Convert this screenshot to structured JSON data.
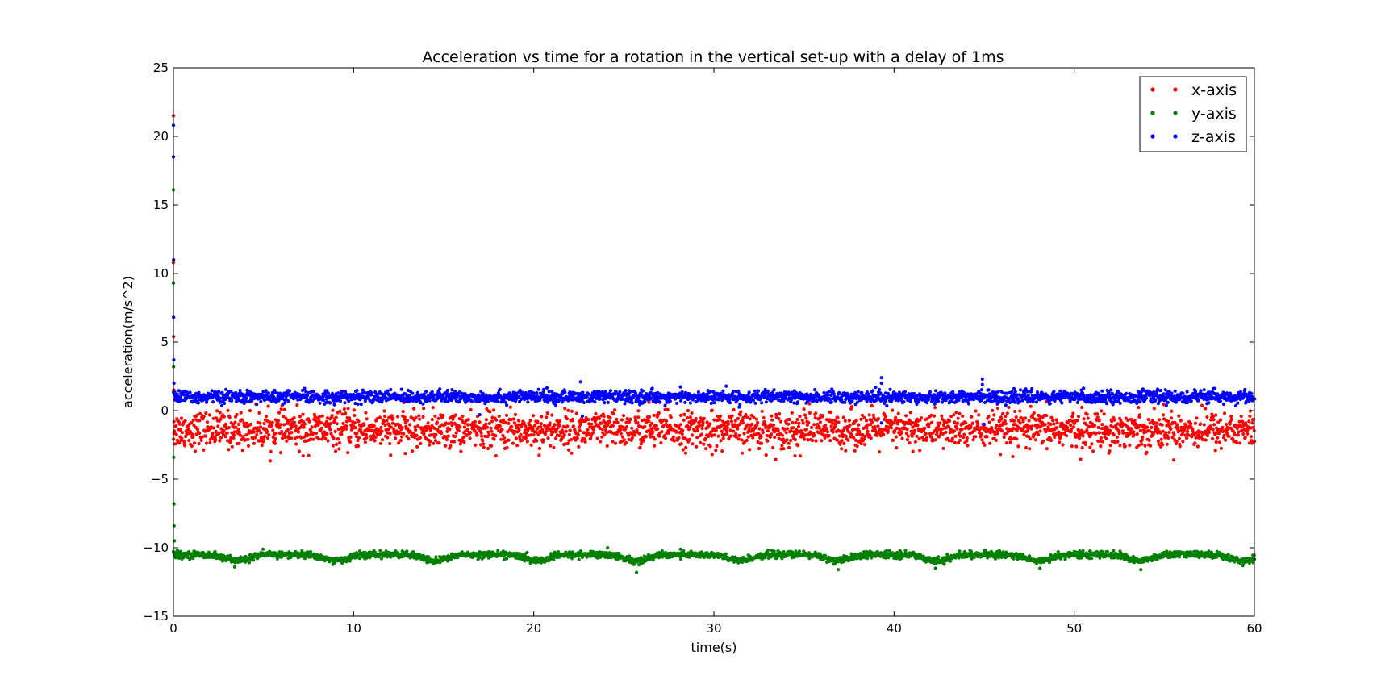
{
  "chart_data": {
    "type": "scatter",
    "title": "Acceleration vs time for a rotation in the vertical set-up with a delay of 1ms",
    "xlabel": "time(s)",
    "ylabel": "acceleration(m/s^2)",
    "xlim": [
      0,
      60
    ],
    "ylim": [
      -15,
      25
    ],
    "x_ticks": [
      "0",
      "10",
      "20",
      "30",
      "40",
      "50",
      "60"
    ],
    "y_ticks": [
      "25",
      "20",
      "15",
      "10",
      "5",
      "0",
      "−5",
      "−10",
      "−15"
    ],
    "x_tick_values": [
      0,
      10,
      20,
      30,
      40,
      50,
      60
    ],
    "y_tick_values": [
      25,
      20,
      15,
      10,
      5,
      0,
      -5,
      -10,
      -15
    ],
    "grid": false,
    "legend_position": "top-right",
    "series": [
      {
        "name": "x-axis",
        "color": "#ff0000",
        "mean": -1.4,
        "spread": 0.65,
        "startup_points": [
          [
            0.0,
            21.5
          ],
          [
            0.0,
            10.8
          ],
          [
            0.01,
            5.4
          ],
          [
            0.02,
            1.5
          ],
          [
            0.03,
            -0.8
          ]
        ],
        "outliers": [
          [
            7.2,
            -3.3
          ],
          [
            17.9,
            -3.3
          ],
          [
            29.9,
            -3.2
          ],
          [
            34.5,
            -3.3
          ],
          [
            45.9,
            -3.2
          ],
          [
            26.4,
            0.6
          ],
          [
            35.3,
            0.5
          ]
        ]
      },
      {
        "name": "y-axis",
        "color": "#008000",
        "mean": -10.5,
        "spread": 0.12,
        "startup_points": [
          [
            0.0,
            16.1
          ],
          [
            0.0,
            9.3
          ],
          [
            0.01,
            3.2
          ],
          [
            0.02,
            -3.4
          ],
          [
            0.03,
            -6.8
          ],
          [
            0.04,
            -8.4
          ],
          [
            0.05,
            -9.5
          ]
        ],
        "dip_centers": [
          3.5,
          9.0,
          14.5,
          20.2,
          25.7,
          31.4,
          36.9,
          42.4,
          48.0,
          53.7,
          59.3
        ],
        "dip_depth": 0.45,
        "outliers": [
          [
            25.7,
            -11.8
          ],
          [
            3.4,
            -11.4
          ],
          [
            36.9,
            -11.6
          ],
          [
            42.3,
            -11.5
          ],
          [
            53.7,
            -11.6
          ],
          [
            48.1,
            -11.5
          ],
          [
            24.1,
            -10.0
          ]
        ]
      },
      {
        "name": "z-axis",
        "color": "#0000ff",
        "mean": 1.0,
        "spread": 0.22,
        "startup_points": [
          [
            0.0,
            20.8
          ],
          [
            0.0,
            18.5
          ],
          [
            0.01,
            11.0
          ],
          [
            0.01,
            6.8
          ],
          [
            0.02,
            3.7
          ],
          [
            0.03,
            2.0
          ]
        ],
        "outliers": [
          [
            22.6,
            2.1
          ],
          [
            39.3,
            2.4
          ],
          [
            39.3,
            2.0
          ],
          [
            44.9,
            2.3
          ],
          [
            44.9,
            1.9
          ],
          [
            39.3,
            -0.9
          ],
          [
            45.0,
            -1.0
          ],
          [
            17.0,
            -0.3
          ],
          [
            22.7,
            -0.4
          ]
        ]
      }
    ]
  }
}
